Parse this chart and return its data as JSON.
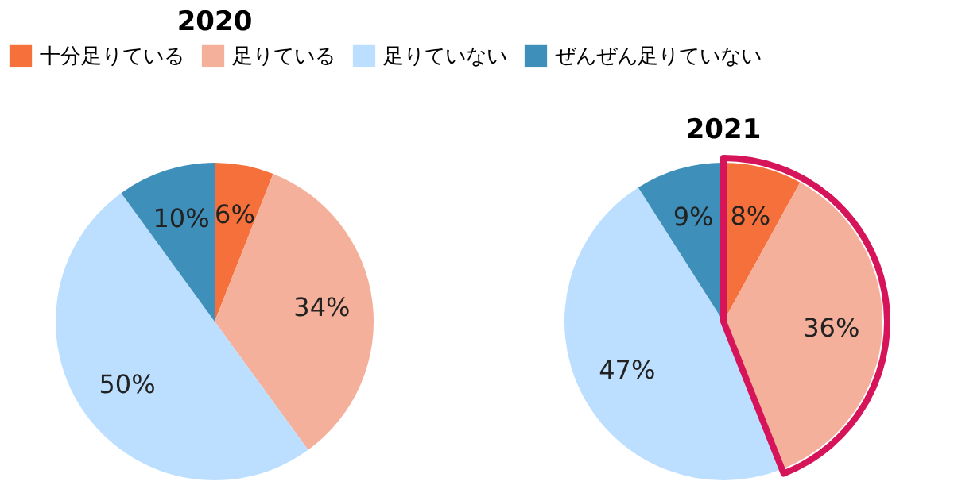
{
  "chart_data": [
    {
      "type": "pie",
      "title": "2020",
      "categories": [
        "十分足りている",
        "足りている",
        "足りていない",
        "ぜんぜん足りていない"
      ],
      "values": [
        6,
        34,
        50,
        10
      ],
      "value_labels": [
        "6%",
        "34%",
        "50%",
        "10%"
      ],
      "colors": [
        "#f5703a",
        "#f4b09a",
        "#bcdfff",
        "#3f8fbb"
      ],
      "legend": "top"
    },
    {
      "type": "pie",
      "title": "2021",
      "categories": [
        null,
        null,
        null,
        null
      ],
      "values": [
        8,
        36,
        47,
        9
      ],
      "value_labels": [
        "8%",
        "36%",
        "47%",
        "9%"
      ],
      "colors": [
        "#f5703a",
        "#f4b09a",
        "#bcdfff",
        "#3f8fbb"
      ]
    }
  ]
}
